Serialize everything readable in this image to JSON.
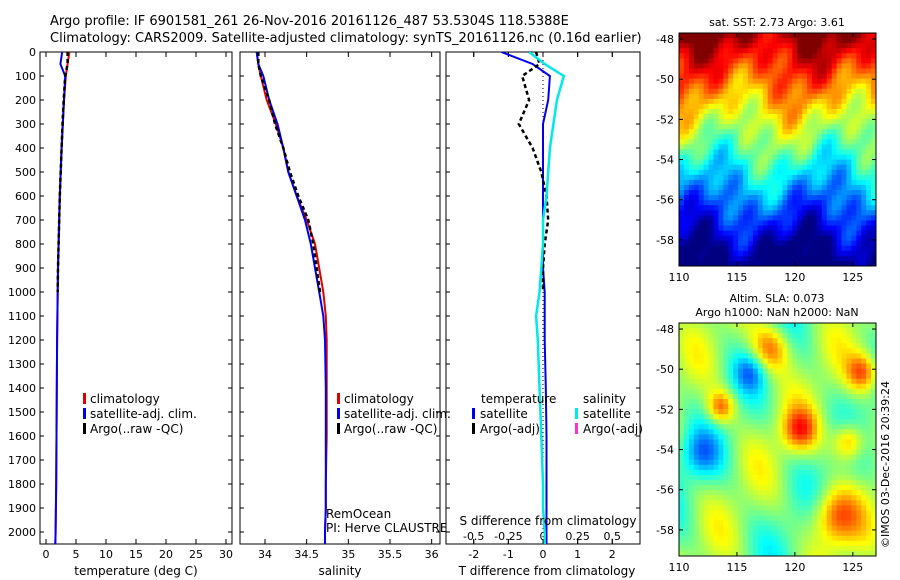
{
  "header": {
    "line1": "Argo profile: IF 6901581_261 26-Nov-2016 20161126_487 53.5304S 118.5388E",
    "line2": "Climatology: CARS2009. Satellite-adjusted climatology: synTS_20161126.nc (0.16d earlier)"
  },
  "panels": {
    "temperature": {
      "xlabel": "temperature (deg C)",
      "xlim": [
        -1,
        31
      ],
      "xticks": [
        0,
        5,
        10,
        15,
        20,
        25,
        30
      ],
      "legend": [
        "climatology",
        "satellite-adj. clim.",
        "Argo(..raw -QC)"
      ]
    },
    "salinity": {
      "xlabel": "salinity",
      "xlim": [
        33.7,
        36.1
      ],
      "xticks": [
        34,
        34.5,
        35,
        35.5,
        36
      ],
      "legend": [
        "climatology",
        "satellite-adj. clim.",
        "Argo(..raw -QC)"
      ],
      "note1": "RemOcean",
      "note2": "PI: Herve CLAUSTRE"
    },
    "difference": {
      "xlabel": "T difference from climatology",
      "s_label": "S difference from climatology",
      "xlim": [
        -2.8,
        2.8
      ],
      "t_ticks": [
        -2,
        -1,
        0,
        1,
        2
      ],
      "s_ticks": [
        "-0.5",
        "-0.25",
        "0",
        "0.25",
        "0.5"
      ],
      "s_tick_values": [
        -2,
        -1,
        0,
        1,
        2
      ],
      "legend_temp_title": "temperature",
      "legend_sal_title": "salinity",
      "legend_items": [
        "satellite",
        "Argo(-adj)",
        "satellite",
        "Argo(-adj)"
      ]
    },
    "sst_map": {
      "title": "sat. SST: 2.73 Argo: 3.61",
      "xticks": [
        110,
        115,
        120,
        125
      ],
      "yticks": [
        -48,
        -50,
        -52,
        -54,
        -56,
        -58
      ]
    },
    "sla_map": {
      "title1": "Altim. SLA: 0.073",
      "title2": "Argo h1000: NaN h2000: NaN",
      "xticks": [
        110,
        115,
        120,
        125
      ],
      "yticks": [
        -48,
        -50,
        -52,
        -54,
        -56,
        -58
      ]
    }
  },
  "depth_ticks": [
    0,
    100,
    200,
    300,
    400,
    500,
    600,
    700,
    800,
    900,
    1000,
    1100,
    1200,
    1300,
    1400,
    1500,
    1600,
    1700,
    1800,
    1900,
    2000
  ],
  "colors": {
    "climatology": "#e00000",
    "satellite": "#0000ee",
    "argo": "#000000",
    "sat_salinity": "#00e8e8",
    "argo_salinity": "#ff33cc"
  },
  "stamp": "©IMOS 03-Dec-2016 20:39:24",
  "chart_data": [
    {
      "type": "line",
      "title": "",
      "xlabel": "temperature (deg C)",
      "ylabel": "",
      "xlim": [
        -1,
        31
      ],
      "ylim": [
        2050,
        0
      ],
      "series": [
        {
          "name": "climatology",
          "x": [
            3.9,
            3.6,
            3.3,
            3.0,
            2.8,
            2.6,
            2.45,
            2.3,
            2.2,
            2.1,
            2.0,
            1.95,
            1.9,
            1.85,
            1.8,
            1.75,
            1.7,
            1.65,
            1.6,
            1.55
          ],
          "depth": [
            0,
            50,
            100,
            200,
            300,
            400,
            500,
            600,
            700,
            800,
            900,
            1000,
            1100,
            1200,
            1400,
            1600,
            1800,
            1900,
            2000,
            2050
          ]
        },
        {
          "name": "satellite-adj. clim.",
          "x": [
            2.7,
            2.4,
            3.2,
            3.0,
            2.8,
            2.6,
            2.45,
            2.3,
            2.2,
            2.1,
            2.0,
            1.95,
            1.9,
            1.85,
            1.8,
            1.75,
            1.7,
            1.65,
            1.6,
            1.55
          ],
          "depth": [
            0,
            50,
            100,
            200,
            300,
            400,
            500,
            600,
            700,
            800,
            900,
            1000,
            1100,
            1200,
            1400,
            1600,
            1800,
            1900,
            2000,
            2050
          ]
        },
        {
          "name": "Argo(..raw -QC)",
          "x": [
            3.6,
            3.6,
            3.2,
            2.95,
            2.75,
            2.6,
            2.45,
            2.3,
            2.2,
            2.1,
            2.0,
            1.95
          ],
          "depth": [
            0,
            50,
            100,
            200,
            300,
            400,
            500,
            600,
            700,
            800,
            900,
            1000
          ]
        }
      ]
    },
    {
      "type": "line",
      "title": "",
      "xlabel": "salinity",
      "ylabel": "",
      "xlim": [
        33.7,
        36.1
      ],
      "ylim": [
        2050,
        0
      ],
      "series": [
        {
          "name": "climatology",
          "x": [
            33.9,
            33.92,
            33.95,
            34.02,
            34.13,
            34.22,
            34.28,
            34.38,
            34.5,
            34.6,
            34.65,
            34.7,
            34.73,
            34.74,
            34.74,
            34.74,
            34.73,
            34.73,
            34.72,
            34.72
          ],
          "depth": [
            0,
            50,
            100,
            200,
            300,
            400,
            500,
            600,
            700,
            800,
            900,
            1000,
            1100,
            1200,
            1400,
            1600,
            1800,
            1900,
            2000,
            2050
          ]
        },
        {
          "name": "satellite-adj. clim.",
          "x": [
            33.9,
            33.92,
            33.98,
            34.05,
            34.15,
            34.22,
            34.28,
            34.38,
            34.48,
            34.55,
            34.6,
            34.65,
            34.7,
            34.72,
            34.73,
            34.73,
            34.73,
            34.73,
            34.72,
            34.72
          ],
          "depth": [
            0,
            50,
            100,
            200,
            300,
            400,
            500,
            600,
            700,
            800,
            900,
            1000,
            1100,
            1200,
            1400,
            1600,
            1800,
            1900,
            2000,
            2050
          ]
        },
        {
          "name": "Argo(..raw -QC)",
          "x": [
            33.92,
            33.92,
            33.95,
            34.05,
            34.12,
            34.22,
            34.3,
            34.4,
            34.52,
            34.58,
            34.62,
            34.66
          ],
          "depth": [
            0,
            50,
            100,
            200,
            300,
            400,
            500,
            600,
            700,
            800,
            900,
            1000
          ]
        }
      ]
    },
    {
      "type": "line",
      "title": "",
      "xlabel": "T difference from climatology",
      "ylabel": "",
      "xlim": [
        -2.8,
        2.8
      ],
      "ylim": [
        2050,
        0
      ],
      "series": [
        {
          "name": "satellite",
          "x": [
            -1.2,
            -0.3,
            0.2,
            0.15,
            0.0,
            0.0,
            0.0,
            0.0,
            0.0,
            0.0,
            0.0,
            0.05,
            0.05,
            0.05,
            0.08,
            0.1,
            0.1,
            0.1,
            0.1,
            0.1
          ],
          "depth": [
            0,
            50,
            100,
            200,
            300,
            400,
            500,
            600,
            700,
            800,
            900,
            1000,
            1100,
            1200,
            1400,
            1600,
            1800,
            1900,
            2000,
            2050
          ]
        },
        {
          "name": "Argo(-adj)",
          "x": [
            -0.2,
            -0.1,
            -0.6,
            -0.4,
            -0.7,
            -0.3,
            -0.05,
            0.1,
            0.15,
            0.05,
            0.0,
            0.0
          ],
          "depth": [
            0,
            50,
            100,
            200,
            300,
            400,
            500,
            600,
            700,
            800,
            900,
            1000
          ]
        },
        {
          "name": "satellite",
          "x": [
            -0.4,
            0.05,
            0.6,
            0.4,
            0.3,
            0.2,
            0.15,
            0.1,
            0.0,
            0.0,
            -0.05,
            -0.1,
            -0.2,
            -0.15,
            -0.1,
            -0.05,
            0.0,
            0.0,
            0.05,
            0.05
          ],
          "depth": [
            0,
            50,
            100,
            200,
            300,
            400,
            500,
            600,
            700,
            800,
            900,
            1000,
            1100,
            1200,
            1400,
            1600,
            1800,
            1900,
            2000,
            2050
          ]
        }
      ]
    },
    {
      "type": "heatmap",
      "title": "sat. SST: 2.73 Argo: 3.61",
      "xlim": [
        110,
        127
      ],
      "ylim": [
        -59.3,
        -47.7
      ]
    },
    {
      "type": "heatmap",
      "title": "Altim. SLA: 0.073",
      "xlim": [
        110,
        127
      ],
      "ylim": [
        -59.3,
        -47.7
      ]
    }
  ]
}
